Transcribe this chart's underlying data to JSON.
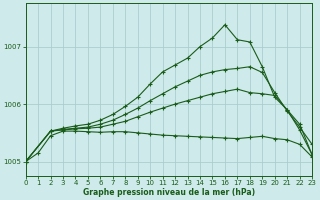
{
  "title": "Graphe pression niveau de la mer (hPa)",
  "bg_color": "#ceeaea",
  "grid_color": "#aacece",
  "line_color": "#1a5c1a",
  "x_min": 0,
  "x_max": 23,
  "y_min": 1004.75,
  "y_max": 1007.75,
  "yticks": [
    1005,
    1006,
    1007
  ],
  "xticks": [
    0,
    1,
    2,
    3,
    4,
    5,
    6,
    7,
    8,
    9,
    10,
    11,
    12,
    13,
    14,
    15,
    16,
    17,
    18,
    19,
    20,
    21,
    22,
    23
  ],
  "series": [
    {
      "x": [
        0,
        1,
        2,
        3,
        4,
        5,
        6,
        7,
        8,
        9,
        10,
        11,
        12,
        13,
        14,
        15,
        16,
        17,
        18,
        19,
        20,
        21,
        22,
        23
      ],
      "y": [
        1005.0,
        1005.15,
        1005.45,
        1005.53,
        1005.53,
        1005.52,
        1005.51,
        1005.52,
        1005.52,
        1005.5,
        1005.48,
        1005.46,
        1005.45,
        1005.44,
        1005.43,
        1005.42,
        1005.41,
        1005.4,
        1005.42,
        1005.44,
        1005.4,
        1005.38,
        1005.3,
        1005.08
      ]
    },
    {
      "x": [
        0,
        2,
        3,
        4,
        5,
        6,
        7,
        8,
        9,
        10,
        11,
        12,
        13,
        14,
        15,
        16,
        17,
        18,
        19,
        20,
        21,
        22,
        23
      ],
      "y": [
        1005.0,
        1005.53,
        1005.55,
        1005.57,
        1005.58,
        1005.6,
        1005.65,
        1005.7,
        1005.78,
        1005.86,
        1005.93,
        1006.0,
        1006.06,
        1006.12,
        1006.18,
        1006.22,
        1006.26,
        1006.2,
        1006.18,
        1006.15,
        1005.9,
        1005.55,
        1005.12
      ]
    },
    {
      "x": [
        0,
        2,
        3,
        4,
        5,
        6,
        7,
        8,
        9,
        10,
        11,
        12,
        13,
        14,
        15,
        16,
        17,
        18,
        19,
        20,
        21,
        22,
        23
      ],
      "y": [
        1005.0,
        1005.53,
        1005.56,
        1005.58,
        1005.6,
        1005.65,
        1005.72,
        1005.82,
        1005.93,
        1006.06,
        1006.18,
        1006.3,
        1006.4,
        1006.5,
        1006.56,
        1006.6,
        1006.62,
        1006.65,
        1006.55,
        1006.2,
        1005.88,
        1005.6,
        1005.3
      ]
    },
    {
      "x": [
        0,
        2,
        3,
        4,
        5,
        6,
        7,
        8,
        9,
        10,
        11,
        12,
        13,
        14,
        15,
        16,
        17,
        18,
        19,
        20,
        21,
        22,
        23
      ],
      "y": [
        1005.0,
        1005.53,
        1005.58,
        1005.62,
        1005.65,
        1005.72,
        1005.82,
        1005.96,
        1006.12,
        1006.35,
        1006.56,
        1006.68,
        1006.8,
        1007.0,
        1007.15,
        1007.38,
        1007.12,
        1007.08,
        1006.65,
        1006.12,
        1005.9,
        1005.65,
        1005.12
      ]
    }
  ]
}
